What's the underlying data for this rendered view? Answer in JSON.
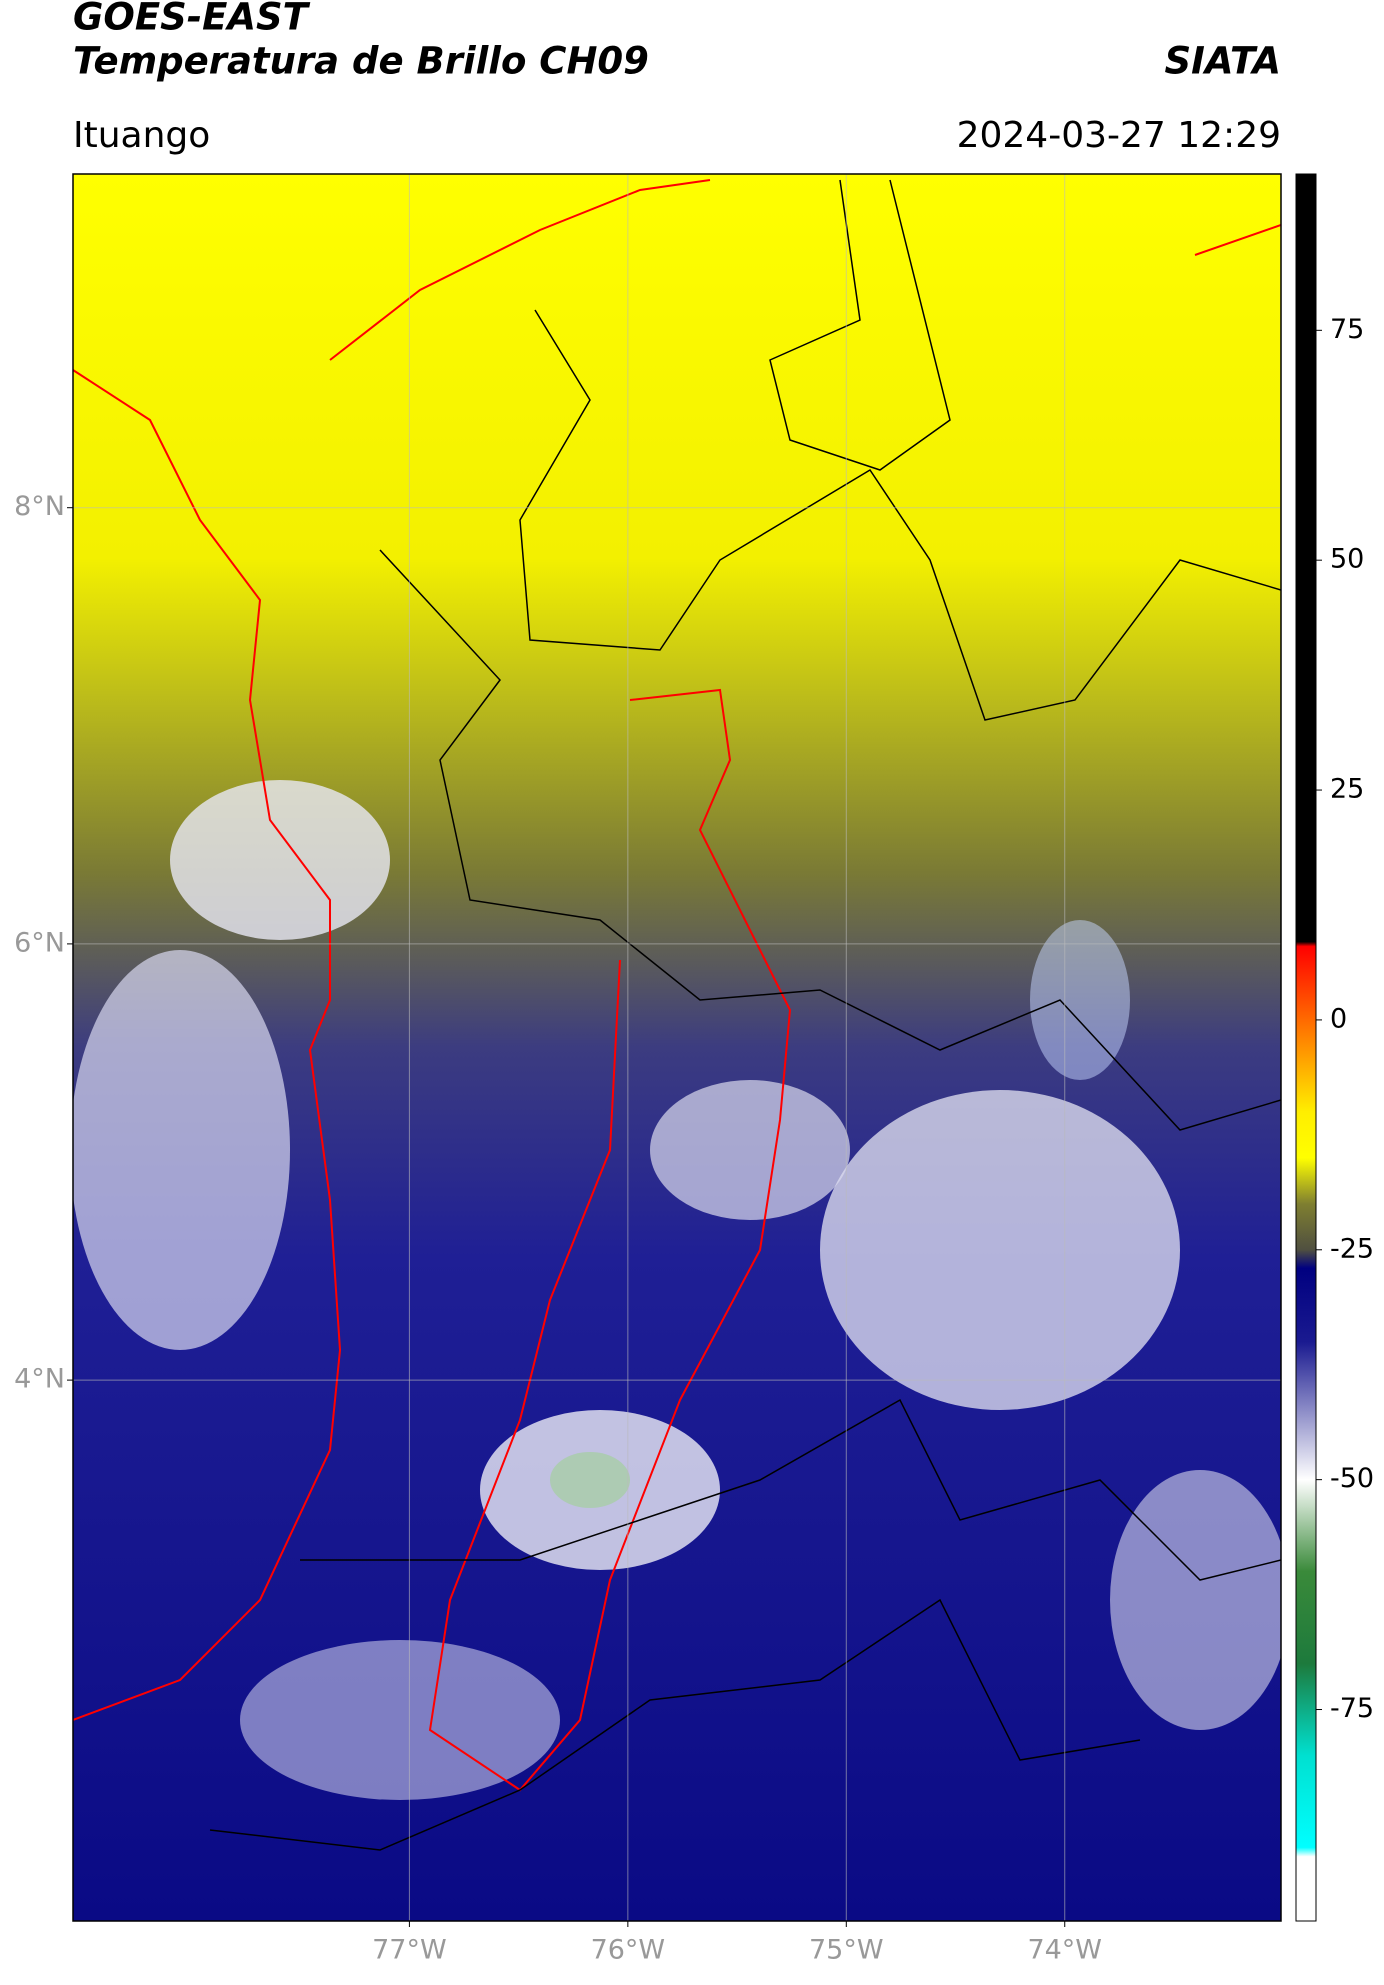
{
  "header": {
    "title": "GOES-EAST",
    "subtitle": "Temperatura de Brillo CH09",
    "source": "SIATA",
    "location": "Ituango",
    "datetime": "2024-03-27 12:29"
  },
  "map": {
    "ylim": [
      1.52,
      9.53
    ],
    "xlim": [
      -78.54,
      -73.01
    ],
    "yticks": [
      {
        "value": 8,
        "label": "8°N"
      },
      {
        "value": 6,
        "label": "6°N"
      },
      {
        "value": 4,
        "label": "4°N"
      }
    ],
    "xticks": [
      {
        "value": -77,
        "label": "77°W"
      },
      {
        "value": -76,
        "label": "76°W"
      },
      {
        "value": -75,
        "label": "75°W"
      },
      {
        "value": -74,
        "label": "74°W"
      }
    ],
    "grid": true
  },
  "colorbar": {
    "clim": [
      -98,
      92
    ],
    "ticks": [
      75,
      50,
      25,
      0,
      -25,
      -50,
      -75
    ],
    "stops": [
      {
        "value": 92,
        "color": "#000000"
      },
      {
        "value": 8.5,
        "color": "#000000"
      },
      {
        "value": 8,
        "color": "#ff0000"
      },
      {
        "value": 0,
        "color": "#ff6a00"
      },
      {
        "value": -10,
        "color": "#ffee00"
      },
      {
        "value": -15,
        "color": "#ffff00"
      },
      {
        "value": -20,
        "color": "#7f7f30"
      },
      {
        "value": -25,
        "color": "#505040"
      },
      {
        "value": -27,
        "color": "#000080"
      },
      {
        "value": -35,
        "color": "#1a1a90"
      },
      {
        "value": -50,
        "color": "#ffffff"
      },
      {
        "value": -60,
        "color": "#3a8a3a"
      },
      {
        "value": -70,
        "color": "#1d7a3c"
      },
      {
        "value": -80,
        "color": "#00e0d0"
      },
      {
        "value": -90,
        "color": "#00ffff"
      },
      {
        "value": -91,
        "color": "#ffffff"
      },
      {
        "value": -98,
        "color": "#ffffff"
      }
    ]
  }
}
